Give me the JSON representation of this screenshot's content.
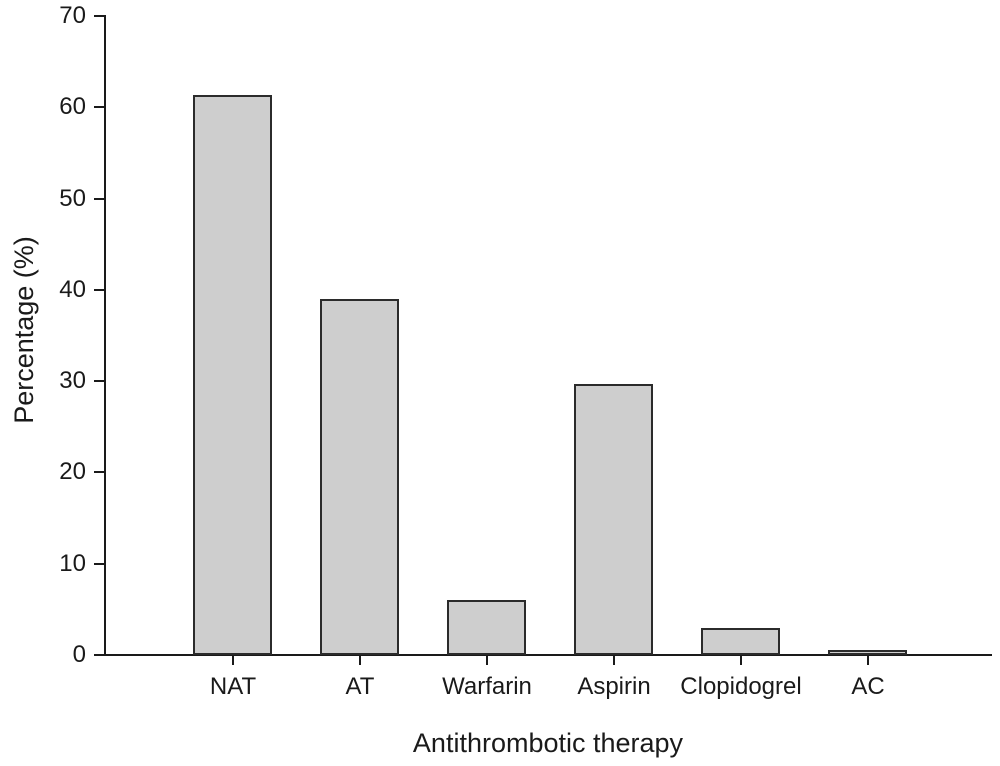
{
  "chart_data": {
    "type": "bar",
    "categories": [
      "NAT",
      "AT",
      "Warfarin",
      "Aspirin",
      "Clopidogrel",
      "AC"
    ],
    "values": [
      61.3,
      39,
      6,
      29.7,
      3,
      0.6
    ],
    "title": "",
    "xlabel": "Antithrombotic therapy",
    "ylabel": "Percentage (%)",
    "ylim": [
      0,
      70
    ],
    "yticks": [
      0,
      10,
      20,
      30,
      40,
      50,
      60,
      70
    ],
    "legend": "none",
    "grid": false,
    "colors": {
      "bar_fill": "#cecece",
      "bar_border": "#2b2b2b",
      "axis": "#1a1a1a",
      "text": "#1a1a1a",
      "background": "#ffffff"
    }
  }
}
